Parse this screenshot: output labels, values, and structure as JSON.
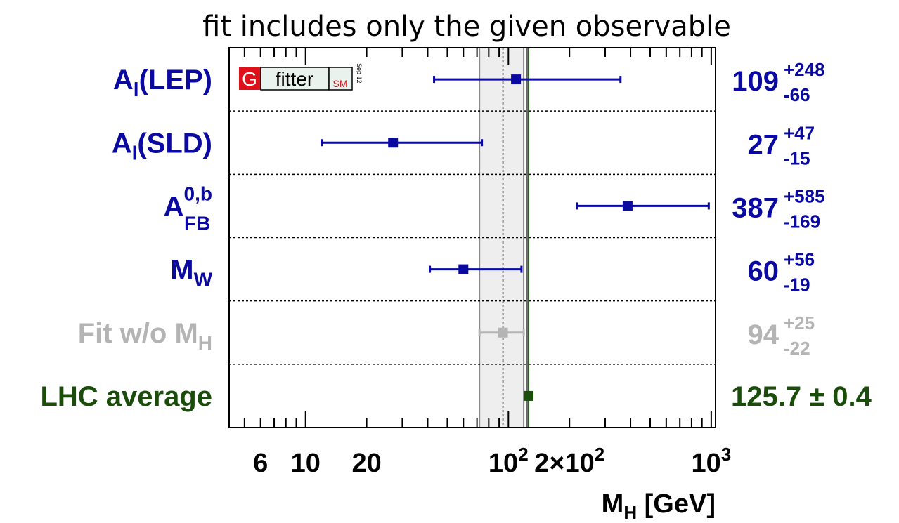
{
  "chart_data": {
    "type": "scatter",
    "title": "fit includes only the given observable",
    "xlabel": "M",
    "xlabel_sub": "H",
    "xlabel_unit": "[GeV]",
    "x_scale": "log",
    "xlim": [
      4.2,
      1050
    ],
    "grid": false,
    "x_ticks": [
      {
        "value": 6,
        "label": "6"
      },
      {
        "value": 10,
        "label": "10"
      },
      {
        "value": 20,
        "label": "20"
      },
      {
        "value": 100,
        "label": "10",
        "sup": "2"
      },
      {
        "value": 200,
        "label": "2×10",
        "sup": "2"
      },
      {
        "value": 1000,
        "label": "10",
        "sup": "3"
      }
    ],
    "rows": [
      {
        "label": "A",
        "sub": "l",
        "tail": "(LEP)",
        "value": 109,
        "plus": 248,
        "minus": 66,
        "value_text": "109",
        "up_text": "+248",
        "down_text": "-66",
        "color": "#0a0aa0"
      },
      {
        "label": "A",
        "sub": "l",
        "tail": "(SLD)",
        "value": 27,
        "plus": 47,
        "minus": 15,
        "value_text": "27",
        "up_text": "+47",
        "down_text": "-15",
        "color": "#0a0aa0"
      },
      {
        "label": "A",
        "sup": "0,b",
        "sub": "FB",
        "tail": "",
        "value": 387,
        "plus": 585,
        "minus": 169,
        "value_text": "387",
        "up_text": "+585",
        "down_text": "-169",
        "color": "#0a0aa0"
      },
      {
        "label": "M",
        "sub": "W",
        "tail": "",
        "value": 60,
        "plus": 56,
        "minus": 19,
        "value_text": "60",
        "up_text": "+56",
        "down_text": "-19",
        "color": "#0a0aa0"
      },
      {
        "label": "Fit w/o M",
        "sub": "H",
        "tail": "",
        "value": 94,
        "plus": 25,
        "minus": 22,
        "value_text": "94",
        "up_text": "+25",
        "down_text": "-22",
        "color": "#b4b4b4"
      },
      {
        "label": "LHC average",
        "tail": "",
        "value": 125.7,
        "plus": 0.4,
        "minus": 0.4,
        "value_text": "125.7 ± 0.4",
        "color": "#1a4d0a"
      }
    ],
    "band": {
      "low": 72,
      "high": 119,
      "center": 94,
      "fill": "#eeeeee",
      "edge": "#888888"
    },
    "lhc_line": {
      "value": 125.7,
      "color": "#1e6b0e"
    },
    "logo": {
      "letter": "G",
      "word": "fitter",
      "tag": "SM",
      "date": "Sep 12"
    }
  }
}
